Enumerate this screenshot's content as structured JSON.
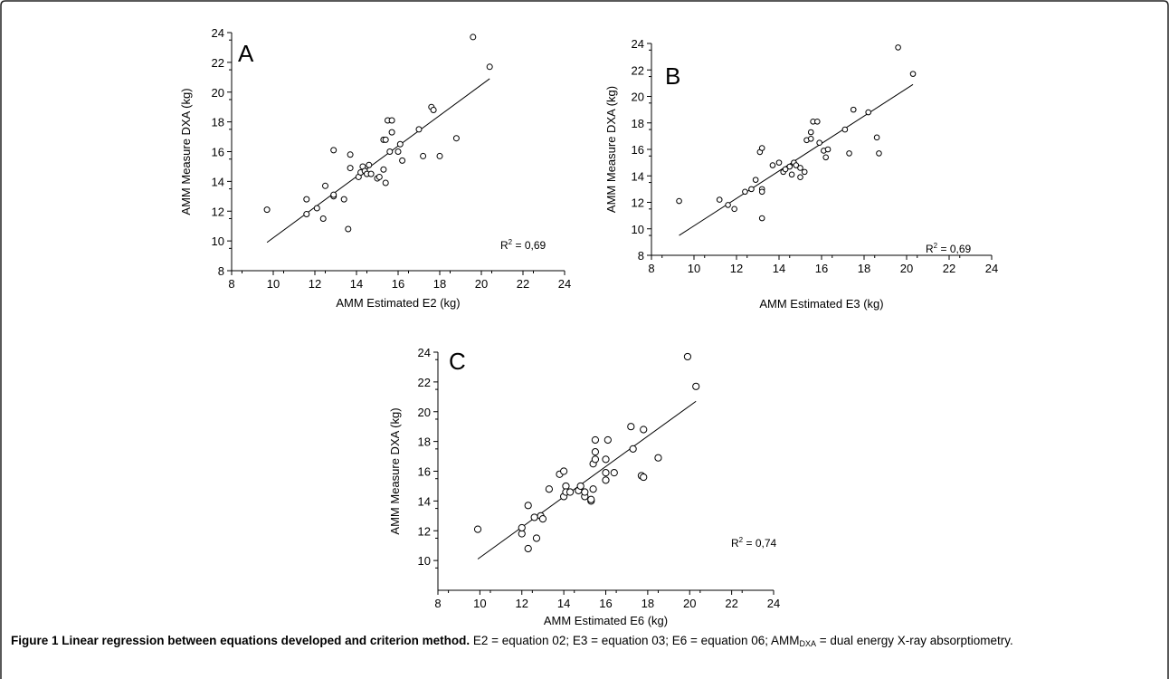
{
  "chart_data": [
    {
      "type": "scatter",
      "panel": "A",
      "xlabel": "AMM Estimated E2 (kg)",
      "ylabel": "AMM Measure DXA (kg)",
      "xlim": [
        8,
        24
      ],
      "ylim": [
        8,
        24
      ],
      "xticks": [
        8,
        10,
        12,
        14,
        16,
        18,
        20,
        22,
        24
      ],
      "yticks": [
        8,
        10,
        12,
        14,
        16,
        18,
        20,
        22,
        24
      ],
      "r2_label": "0,69",
      "regression_line": {
        "x": [
          9.7,
          20.4
        ],
        "y": [
          9.9,
          20.9
        ]
      },
      "points": [
        [
          9.7,
          12.1
        ],
        [
          11.6,
          11.8
        ],
        [
          11.6,
          12.8
        ],
        [
          12.1,
          12.2
        ],
        [
          12.4,
          11.5
        ],
        [
          12.5,
          13.7
        ],
        [
          12.9,
          13.0
        ],
        [
          12.9,
          13.1
        ],
        [
          12.9,
          16.1
        ],
        [
          13.4,
          12.8
        ],
        [
          13.6,
          10.8
        ],
        [
          13.7,
          14.9
        ],
        [
          13.7,
          15.8
        ],
        [
          14.1,
          14.3
        ],
        [
          14.2,
          14.6
        ],
        [
          14.3,
          15.0
        ],
        [
          14.4,
          14.7
        ],
        [
          14.5,
          14.5
        ],
        [
          14.6,
          15.1
        ],
        [
          14.7,
          14.5
        ],
        [
          15.0,
          14.2
        ],
        [
          15.1,
          14.3
        ],
        [
          15.3,
          14.8
        ],
        [
          15.3,
          16.8
        ],
        [
          15.4,
          13.9
        ],
        [
          15.4,
          16.8
        ],
        [
          15.5,
          18.1
        ],
        [
          15.6,
          16.0
        ],
        [
          15.7,
          18.1
        ],
        [
          15.7,
          17.3
        ],
        [
          16.0,
          16.0
        ],
        [
          16.1,
          16.5
        ],
        [
          16.2,
          15.4
        ],
        [
          17.0,
          17.5
        ],
        [
          17.2,
          15.7
        ],
        [
          17.6,
          19.0
        ],
        [
          17.7,
          18.8
        ],
        [
          18.0,
          15.7
        ],
        [
          18.8,
          16.9
        ],
        [
          19.6,
          23.7
        ],
        [
          20.4,
          21.7
        ]
      ]
    },
    {
      "type": "scatter",
      "panel": "B",
      "xlabel": "AMM Estimated E3 (kg)",
      "ylabel": "AMM Measure DXA (kg)",
      "xlim": [
        8,
        24
      ],
      "ylim": [
        8,
        24
      ],
      "xticks": [
        8,
        10,
        12,
        14,
        16,
        18,
        20,
        22,
        24
      ],
      "yticks": [
        8,
        10,
        12,
        14,
        16,
        18,
        20,
        22,
        24
      ],
      "r2_label": "0,69",
      "regression_line": {
        "x": [
          9.3,
          20.3
        ],
        "y": [
          9.5,
          20.9
        ]
      },
      "points": [
        [
          9.3,
          12.1
        ],
        [
          11.2,
          12.2
        ],
        [
          11.6,
          11.8
        ],
        [
          11.9,
          11.5
        ],
        [
          12.4,
          12.8
        ],
        [
          12.7,
          13.0
        ],
        [
          12.9,
          13.7
        ],
        [
          13.1,
          15.8
        ],
        [
          13.2,
          16.1
        ],
        [
          13.2,
          13.0
        ],
        [
          13.2,
          12.8
        ],
        [
          13.2,
          10.8
        ],
        [
          13.7,
          14.8
        ],
        [
          14.0,
          15.0
        ],
        [
          14.2,
          14.3
        ],
        [
          14.3,
          14.5
        ],
        [
          14.5,
          14.7
        ],
        [
          14.6,
          14.1
        ],
        [
          14.7,
          15.0
        ],
        [
          14.8,
          14.8
        ],
        [
          15.0,
          14.6
        ],
        [
          15.0,
          13.9
        ],
        [
          15.2,
          14.3
        ],
        [
          15.3,
          16.7
        ],
        [
          15.5,
          16.8
        ],
        [
          15.5,
          17.3
        ],
        [
          15.6,
          18.1
        ],
        [
          15.8,
          18.1
        ],
        [
          15.9,
          16.5
        ],
        [
          16.1,
          15.9
        ],
        [
          16.2,
          15.4
        ],
        [
          16.3,
          16.0
        ],
        [
          17.1,
          17.5
        ],
        [
          17.3,
          15.7
        ],
        [
          17.5,
          19.0
        ],
        [
          18.2,
          18.8
        ],
        [
          18.6,
          16.9
        ],
        [
          18.7,
          15.7
        ],
        [
          19.6,
          23.7
        ],
        [
          20.3,
          21.7
        ]
      ]
    },
    {
      "type": "scatter",
      "panel": "C",
      "xlabel": "AMM Estimated E6 (kg)",
      "ylabel": "AMM Measure DXA (kg)",
      "xlim": [
        8,
        24
      ],
      "ylim": [
        8,
        24
      ],
      "xticks": [
        8,
        10,
        12,
        14,
        16,
        18,
        20,
        22,
        24
      ],
      "yticks": [
        10,
        12,
        14,
        16,
        18,
        20,
        22,
        24
      ],
      "r2_label": "0,74",
      "regression_line": {
        "x": [
          9.9,
          20.3
        ],
        "y": [
          10.1,
          20.7
        ]
      },
      "points": [
        [
          9.9,
          12.1
        ],
        [
          12.0,
          11.8
        ],
        [
          12.0,
          12.2
        ],
        [
          12.3,
          13.7
        ],
        [
          12.3,
          10.8
        ],
        [
          12.6,
          12.9
        ],
        [
          12.7,
          11.5
        ],
        [
          12.9,
          13.0
        ],
        [
          13.0,
          12.8
        ],
        [
          13.3,
          14.8
        ],
        [
          13.8,
          15.8
        ],
        [
          14.0,
          16.0
        ],
        [
          14.0,
          14.3
        ],
        [
          14.1,
          15.0
        ],
        [
          14.1,
          14.6
        ],
        [
          14.3,
          14.6
        ],
        [
          14.7,
          14.7
        ],
        [
          14.8,
          15.0
        ],
        [
          15.0,
          14.3
        ],
        [
          15.0,
          14.6
        ],
        [
          15.3,
          14.0
        ],
        [
          15.3,
          14.1
        ],
        [
          15.4,
          14.8
        ],
        [
          15.4,
          16.5
        ],
        [
          15.5,
          16.8
        ],
        [
          15.5,
          17.3
        ],
        [
          15.5,
          18.1
        ],
        [
          16.0,
          15.4
        ],
        [
          16.0,
          15.9
        ],
        [
          16.0,
          16.8
        ],
        [
          16.1,
          18.1
        ],
        [
          16.4,
          15.9
        ],
        [
          17.2,
          19.0
        ],
        [
          17.3,
          17.5
        ],
        [
          17.7,
          15.7
        ],
        [
          17.8,
          15.6
        ],
        [
          17.8,
          18.8
        ],
        [
          18.5,
          16.9
        ],
        [
          19.9,
          23.7
        ],
        [
          20.3,
          21.7
        ]
      ]
    }
  ],
  "caption": {
    "title": "Figure 1 Linear regression between equations developed and criterion method.",
    "text_before_sub": " E2 = equation 02; E3 = equation 03; E6 = equation 06; AMM",
    "subscript": "DXA",
    "text_after_sub": " = dual energy X-ray absorptiometry."
  }
}
